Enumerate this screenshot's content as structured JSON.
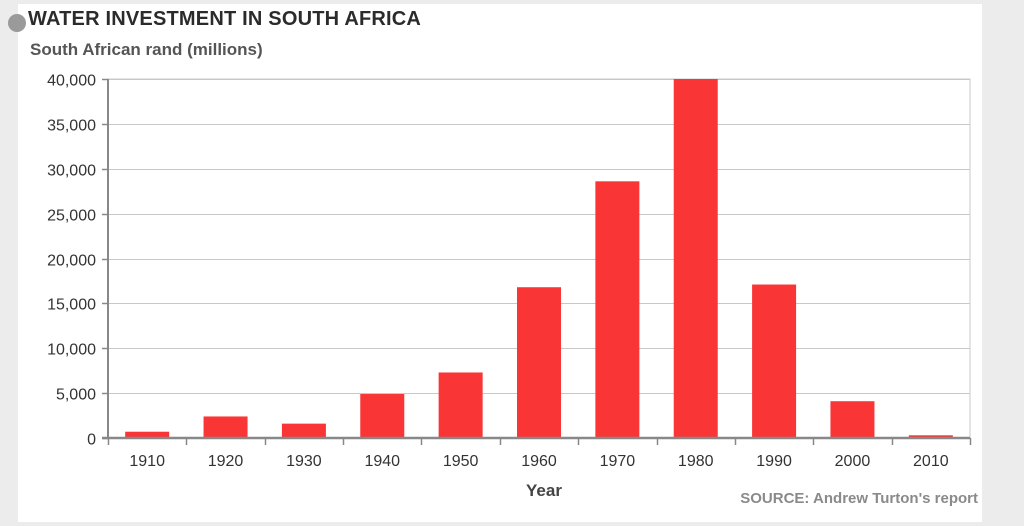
{
  "chart_data": {
    "type": "bar",
    "title": "WATER INVESTMENT IN SOUTH AFRICA",
    "subtitle": "South African rand (millions)",
    "xlabel": "Year",
    "ylabel": "",
    "categories": [
      "1910",
      "1920",
      "1930",
      "1940",
      "1950",
      "1960",
      "1970",
      "1980",
      "1990",
      "2000",
      "2010"
    ],
    "values": [
      700,
      2400,
      1600,
      4900,
      7300,
      16800,
      28600,
      40000,
      17100,
      4100,
      300
    ],
    "ylim": [
      0,
      40000
    ],
    "yticks": [
      0,
      5000,
      10000,
      15000,
      20000,
      25000,
      30000,
      35000,
      40000
    ],
    "ytick_labels": [
      "0",
      "5,000",
      "10,000",
      "15,000",
      "20,000",
      "25,000",
      "30,000",
      "35,000",
      "40,000"
    ],
    "grid": true,
    "legend": "none",
    "bar_color": "#f93535",
    "grid_color": "#c8c8c8",
    "axis_color": "#888888",
    "source": "SOURCE: Andrew Turton's report"
  }
}
